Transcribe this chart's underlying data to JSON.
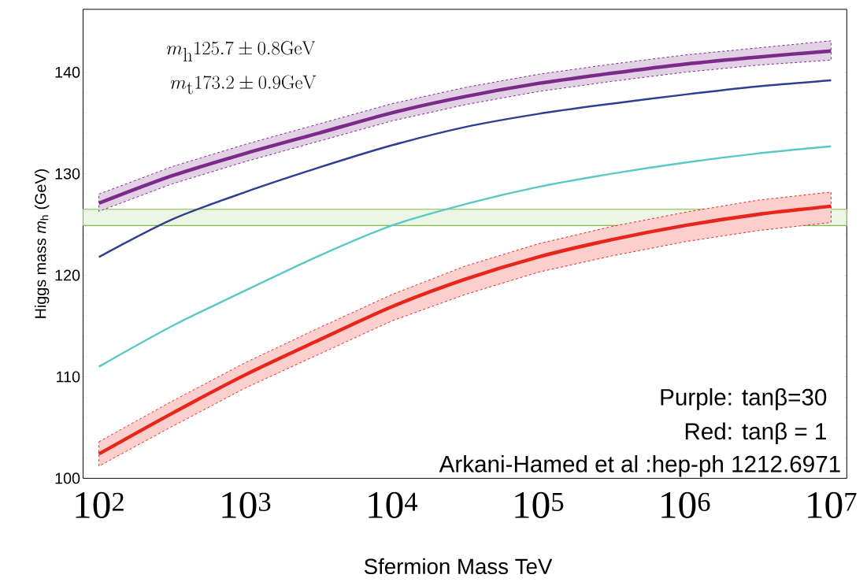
{
  "chart_data": {
    "type": "line",
    "xlabel": "Sfermion Mass TeV",
    "ylabel": "Higgs mass *m*$_{h}$ (GeV)",
    "log": "x",
    "xlim": [
      78,
      12800000
    ],
    "ylim": [
      100,
      146.2
    ],
    "xticks": [
      {
        "value": 100,
        "label": "10$^{2}$"
      },
      {
        "value": 1000,
        "label": "10$^{3}$"
      },
      {
        "value": 10000,
        "label": "10$^{4}$"
      },
      {
        "value": 100000,
        "label": "10$^{5}$"
      },
      {
        "value": 1000000,
        "label": "10$^{6}$"
      },
      {
        "value": 10000000,
        "label": "10$^{7}$"
      }
    ],
    "yticks": [
      100,
      110,
      120,
      130,
      140
    ],
    "x": [
      100,
      316,
      1000,
      3162,
      10000,
      31623,
      100000,
      316228,
      1000000,
      3162278,
      10000000
    ],
    "series": [
      {
        "color": "#7b2a8a",
        "values": [
          127.1,
          129.8,
          132.0,
          134.0,
          136.0,
          137.6,
          138.9,
          139.9,
          140.8,
          141.5,
          142.1
        ],
        "upper": [
          128.0,
          130.7,
          132.9,
          134.9,
          136.9,
          138.5,
          139.8,
          140.8,
          141.7,
          142.4,
          143.1
        ],
        "lower": [
          126.3,
          129.0,
          131.2,
          133.2,
          135.2,
          136.8,
          138.1,
          139.1,
          140.0,
          140.7,
          141.2
        ]
      },
      {
        "color": "#2e3f93",
        "values": [
          121.8,
          125.5,
          128.2,
          130.6,
          132.8,
          134.6,
          135.9,
          136.9,
          137.8,
          138.6,
          139.2
        ]
      },
      {
        "color": "#5bc8c8",
        "values": [
          111.0,
          115.0,
          118.5,
          121.9,
          124.9,
          127.0,
          128.7,
          130.0,
          131.1,
          132.0,
          132.7
        ]
      },
      {
        "color": "#e8251a",
        "values": [
          102.4,
          106.4,
          110.2,
          113.6,
          116.9,
          119.6,
          121.8,
          123.5,
          124.9,
          126.0,
          126.8
        ],
        "upper": [
          103.6,
          107.6,
          111.4,
          114.8,
          118.1,
          120.9,
          123.1,
          124.8,
          126.2,
          127.4,
          128.2
        ],
        "lower": [
          101.2,
          105.1,
          108.9,
          112.2,
          115.5,
          118.1,
          120.3,
          121.9,
          123.3,
          124.4,
          125.2
        ]
      }
    ],
    "bands": [
      {
        "axis": "y",
        "from": 124.9,
        "to": 126.5,
        "color": "#7cc04a"
      }
    ],
    "annotations": [
      "m_{\\mathrm{h}}125.7\\pm0.8\\mathrm{GeV}",
      "m_{\\mathrm{t}}173.2\\pm0.9\\mathrm{GeV}",
      "Purple: tanβ=30",
      "Red: tanβ = 1",
      "Arkani-Hamed et al :hep-ph 1212.6971"
    ]
  }
}
